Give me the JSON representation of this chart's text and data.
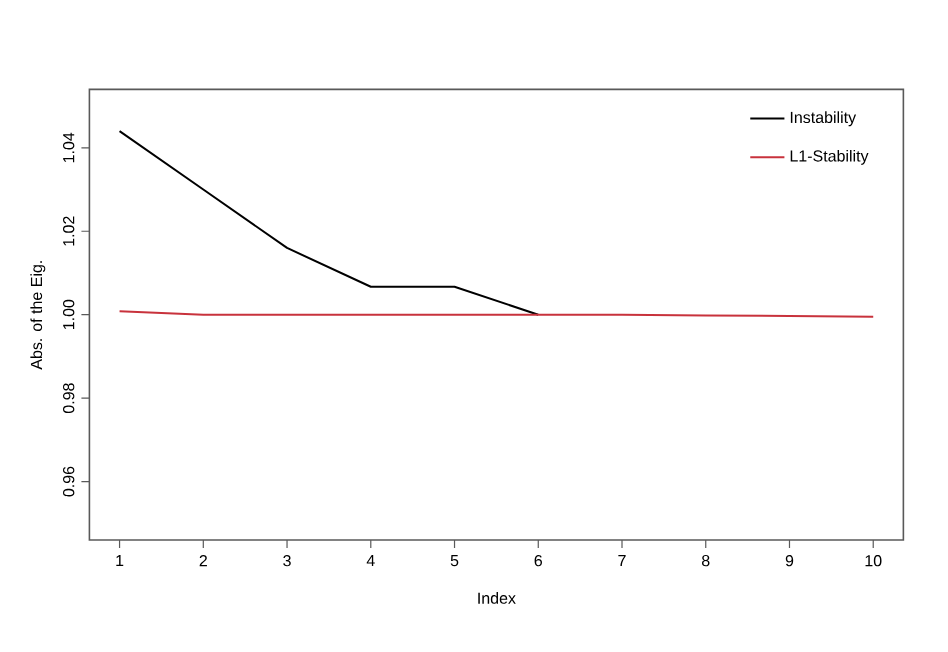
{
  "chart_data": {
    "type": "line",
    "xlabel": "Index",
    "ylabel": "Abs. of the Eig.",
    "x": [
      1,
      2,
      3,
      4,
      5,
      6,
      7,
      8,
      9,
      10
    ],
    "series": [
      {
        "name": "Instability",
        "color": "#000000",
        "values": [
          1.044,
          1.03,
          1.016,
          1.0067,
          1.0067,
          1.0,
          null,
          null,
          null,
          null
        ]
      },
      {
        "name": "L1-Stability",
        "color": "#c8323c",
        "values": [
          1.0008,
          1.0,
          1.0,
          1.0,
          1.0,
          1.0,
          1.0,
          0.9998,
          0.9997,
          0.9995
        ]
      }
    ],
    "xlim": [
      0.64,
      10.36
    ],
    "ylim": [
      0.946,
      1.054
    ],
    "xticks": [
      1,
      2,
      3,
      4,
      5,
      6,
      7,
      8,
      9,
      10
    ],
    "yticks": [
      0.96,
      0.98,
      {
        "value": 1.0,
        "label": "1.00"
      },
      1.02,
      1.04
    ],
    "legend": "top right",
    "grid": false,
    "marker": "none",
    "line_style": "solid"
  }
}
